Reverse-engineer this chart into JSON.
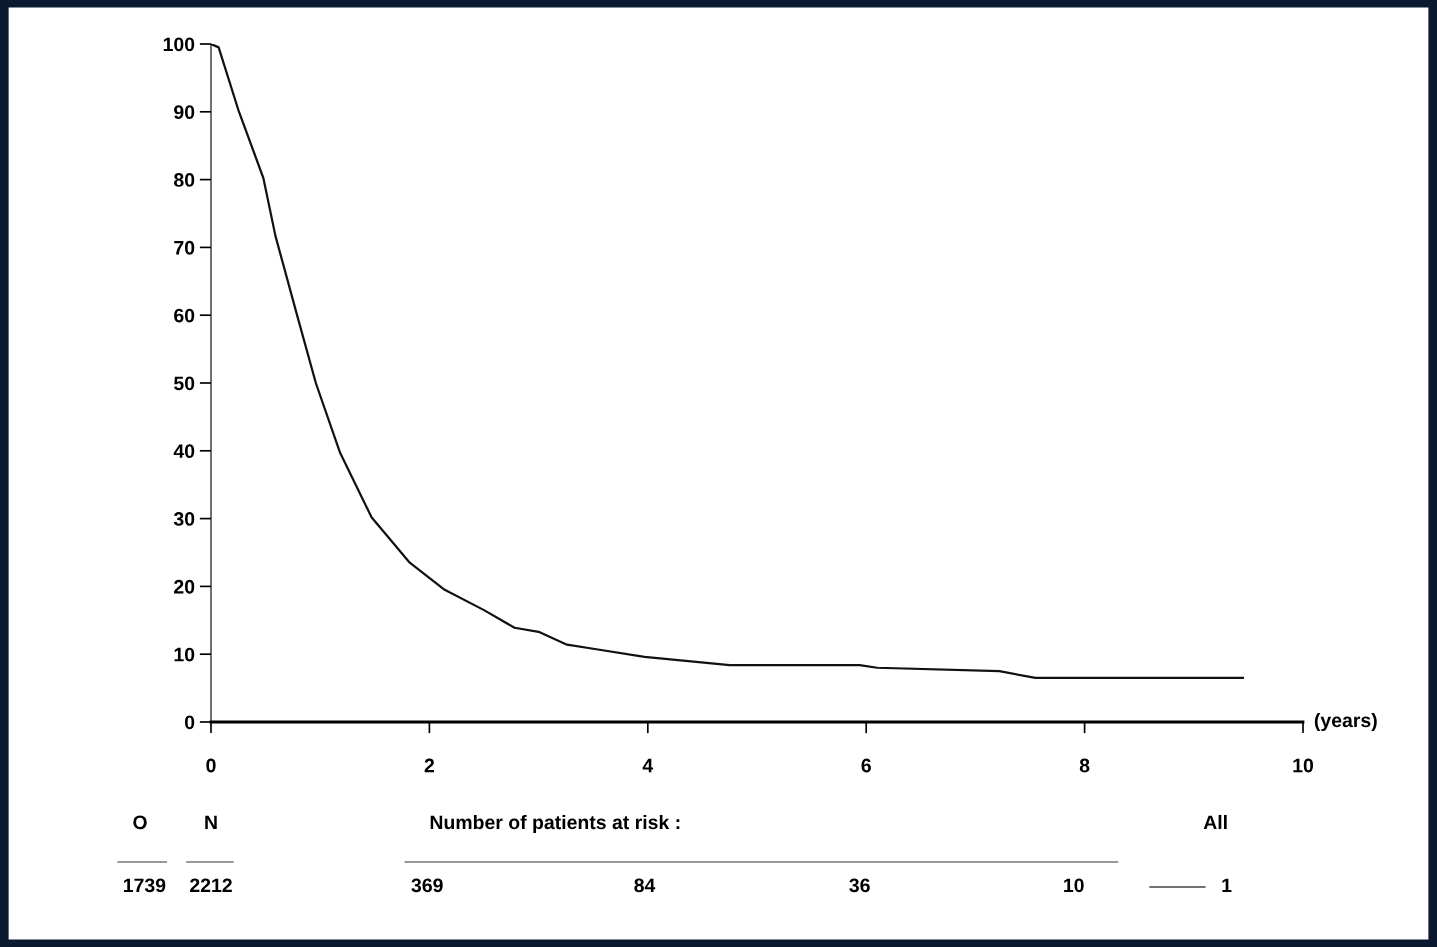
{
  "chart_data": {
    "type": "line",
    "xlabel": "(years)",
    "x": [
      0,
      0.07,
      0.25,
      0.48,
      0.59,
      0.79,
      0.96,
      1.18,
      1.47,
      1.82,
      2.14,
      2.5,
      2.78,
      3.0,
      3.26,
      3.5,
      3.97,
      4.75,
      5.94,
      6.1,
      7.22,
      7.55,
      9.45
    ],
    "series": [
      {
        "color": "#111111",
        "values": [
          100,
          99.5,
          90.3,
          80.2,
          71.7,
          59.9,
          50,
          39.8,
          30.2,
          23.5,
          19.5,
          16.5,
          13.9,
          13.3,
          11.4,
          10.8,
          9.6,
          8.4,
          8.4,
          8.0,
          7.5,
          6.5,
          6.5
        ]
      }
    ],
    "xlim": [
      0,
      10
    ],
    "xticks": [
      0,
      2,
      4,
      6,
      8,
      10
    ],
    "ylim": [
      0,
      100
    ],
    "yticks": [
      0,
      10,
      20,
      30,
      40,
      50,
      60,
      70,
      80,
      90,
      100
    ],
    "grid": false,
    "legend": false,
    "marker": "none",
    "line_style": "solid",
    "annotations": [
      "O",
      "N",
      "Number of patients at risk :",
      "All",
      "1739",
      "2212",
      "369",
      "84",
      "36",
      "10",
      "1"
    ]
  }
}
